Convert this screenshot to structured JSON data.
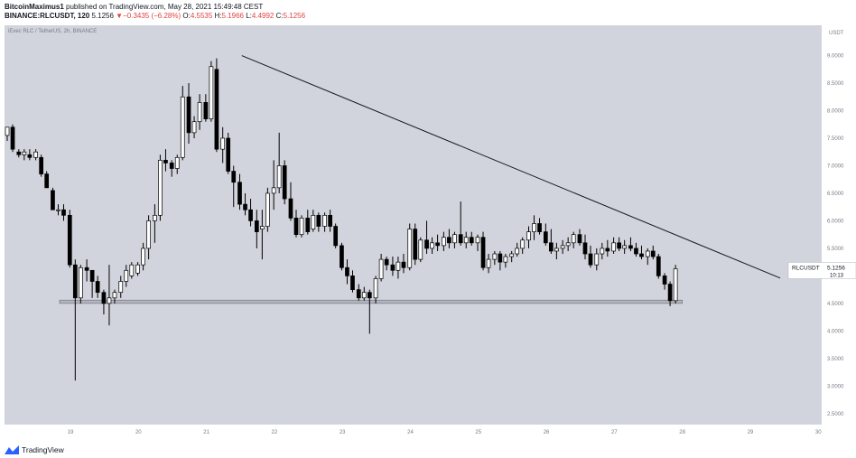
{
  "header": {
    "author": "BitcoinMaximus1",
    "published_text": " published on TradingView.com, May 28, 2021 15:49:48 CEST",
    "symbol": "BINANCE:RLCUSDT, 120",
    "last": "5.1256",
    "change_arrow": "▼",
    "change": "−0.3435 (−6.28%)",
    "o_label": "O:",
    "o_value": "4.5535",
    "h_label": "H:",
    "h_value": "5.1966",
    "l_label": "L:",
    "l_value": "4.4992",
    "c_label": "C:",
    "c_value": "5.1256"
  },
  "watermark": "iExec RLC / TetherUS, 2h, BINANCE",
  "price_tag": {
    "label": "RLCUSDT",
    "value": "5.1256",
    "countdown": "10:13"
  },
  "footer": {
    "brand": "TradingView",
    "logo_icon": "tradingview-logo-icon"
  },
  "colors": {
    "plot_bg": "#d1d4dc",
    "candle_body": "#ffffff",
    "candle_border": "#000000",
    "trendline": "#131722",
    "support_zone": "#b2b5be"
  },
  "chart_data": {
    "type": "candlestick",
    "currency_label": "USDT",
    "y_ticks": [
      "9.0000",
      "8.5000",
      "8.0000",
      "7.5000",
      "7.0000",
      "6.5000",
      "6.0000",
      "5.5000",
      "5.0000",
      "4.5000",
      "4.0000",
      "3.5000",
      "3.0000",
      "2.5000"
    ],
    "ylim": [
      2.3,
      9.55
    ],
    "x_ticks": [
      "19",
      "20",
      "21",
      "22",
      "23",
      "24",
      "25",
      "26",
      "27",
      "28",
      "29",
      "30"
    ],
    "xlim": [
      18.03,
      30.05
    ],
    "annotations": [
      {
        "type": "trendline",
        "from": [
          21.52,
          9.0
        ],
        "to": [
          29.44,
          4.96
        ]
      },
      {
        "type": "support-zone",
        "x_from": 18.84,
        "x_to": 28.0,
        "y_from": 4.5,
        "y_to": 4.56
      }
    ],
    "candles": [
      {
        "x": 18.07,
        "o": 7.55,
        "h": 7.7,
        "l": 7.45,
        "c": 7.7
      },
      {
        "x": 18.15,
        "o": 7.7,
        "h": 7.75,
        "l": 7.25,
        "c": 7.3
      },
      {
        "x": 18.24,
        "o": 7.25,
        "h": 7.3,
        "l": 7.15,
        "c": 7.2
      },
      {
        "x": 18.32,
        "o": 7.2,
        "h": 7.3,
        "l": 7.1,
        "c": 7.25
      },
      {
        "x": 18.4,
        "o": 7.2,
        "h": 7.3,
        "l": 7.1,
        "c": 7.15
      },
      {
        "x": 18.49,
        "o": 7.15,
        "h": 7.3,
        "l": 7.1,
        "c": 7.25
      },
      {
        "x": 18.57,
        "o": 7.15,
        "h": 7.2,
        "l": 6.8,
        "c": 6.85
      },
      {
        "x": 18.65,
        "o": 6.85,
        "h": 6.9,
        "l": 6.6,
        "c": 6.6
      },
      {
        "x": 18.74,
        "o": 6.55,
        "h": 6.6,
        "l": 6.2,
        "c": 6.2
      },
      {
        "x": 18.82,
        "o": 6.2,
        "h": 6.3,
        "l": 6.1,
        "c": 6.2
      },
      {
        "x": 18.9,
        "o": 6.2,
        "h": 6.3,
        "l": 6.0,
        "c": 6.1
      },
      {
        "x": 18.99,
        "o": 6.1,
        "h": 6.2,
        "l": 5.15,
        "c": 5.2
      },
      {
        "x": 19.07,
        "o": 5.2,
        "h": 5.3,
        "l": 3.1,
        "c": 4.6
      },
      {
        "x": 19.15,
        "o": 4.6,
        "h": 5.2,
        "l": 4.5,
        "c": 5.15
      },
      {
        "x": 19.24,
        "o": 5.15,
        "h": 5.3,
        "l": 4.9,
        "c": 5.1
      },
      {
        "x": 19.32,
        "o": 5.1,
        "h": 5.1,
        "l": 4.6,
        "c": 4.9
      },
      {
        "x": 19.4,
        "o": 4.9,
        "h": 5.0,
        "l": 4.6,
        "c": 4.7
      },
      {
        "x": 19.49,
        "o": 4.7,
        "h": 4.75,
        "l": 4.3,
        "c": 4.5
      },
      {
        "x": 19.57,
        "o": 4.5,
        "h": 5.2,
        "l": 4.1,
        "c": 4.6
      },
      {
        "x": 19.65,
        "o": 4.6,
        "h": 4.75,
        "l": 4.5,
        "c": 4.7
      },
      {
        "x": 19.74,
        "o": 4.7,
        "h": 5.0,
        "l": 4.6,
        "c": 4.9
      },
      {
        "x": 19.82,
        "o": 4.9,
        "h": 5.2,
        "l": 4.8,
        "c": 5.1
      },
      {
        "x": 19.9,
        "o": 5.0,
        "h": 5.25,
        "l": 4.95,
        "c": 5.2
      },
      {
        "x": 19.99,
        "o": 5.05,
        "h": 5.25,
        "l": 5.0,
        "c": 5.2
      },
      {
        "x": 20.07,
        "o": 5.2,
        "h": 5.6,
        "l": 5.1,
        "c": 5.5
      },
      {
        "x": 20.15,
        "o": 5.5,
        "h": 6.1,
        "l": 5.3,
        "c": 6.0
      },
      {
        "x": 20.24,
        "o": 6.0,
        "h": 6.3,
        "l": 5.6,
        "c": 6.1
      },
      {
        "x": 20.32,
        "o": 6.1,
        "h": 7.2,
        "l": 6.0,
        "c": 7.1
      },
      {
        "x": 20.4,
        "o": 7.1,
        "h": 7.3,
        "l": 6.9,
        "c": 7.05
      },
      {
        "x": 20.49,
        "o": 7.05,
        "h": 7.1,
        "l": 6.8,
        "c": 6.95
      },
      {
        "x": 20.57,
        "o": 6.95,
        "h": 7.2,
        "l": 6.85,
        "c": 7.15
      },
      {
        "x": 20.65,
        "o": 7.15,
        "h": 8.45,
        "l": 7.1,
        "c": 8.25
      },
      {
        "x": 20.74,
        "o": 8.25,
        "h": 8.5,
        "l": 7.4,
        "c": 7.6
      },
      {
        "x": 20.82,
        "o": 7.6,
        "h": 7.9,
        "l": 7.5,
        "c": 7.8
      },
      {
        "x": 20.9,
        "o": 7.8,
        "h": 8.3,
        "l": 7.65,
        "c": 8.15
      },
      {
        "x": 20.99,
        "o": 8.15,
        "h": 8.3,
        "l": 7.8,
        "c": 7.85
      },
      {
        "x": 21.07,
        "o": 7.85,
        "h": 8.9,
        "l": 7.8,
        "c": 8.8
      },
      {
        "x": 21.15,
        "o": 8.75,
        "h": 8.95,
        "l": 7.25,
        "c": 7.3
      },
      {
        "x": 21.24,
        "o": 7.3,
        "h": 7.7,
        "l": 7.05,
        "c": 7.5
      },
      {
        "x": 21.32,
        "o": 7.5,
        "h": 7.6,
        "l": 6.85,
        "c": 6.9
      },
      {
        "x": 21.4,
        "o": 6.9,
        "h": 7.0,
        "l": 6.25,
        "c": 6.7
      },
      {
        "x": 21.49,
        "o": 6.7,
        "h": 6.85,
        "l": 6.2,
        "c": 6.3
      },
      {
        "x": 21.57,
        "o": 6.3,
        "h": 6.5,
        "l": 6.1,
        "c": 6.2
      },
      {
        "x": 21.65,
        "o": 6.2,
        "h": 6.4,
        "l": 5.9,
        "c": 6.0
      },
      {
        "x": 21.74,
        "o": 6.0,
        "h": 6.2,
        "l": 5.5,
        "c": 5.8
      },
      {
        "x": 21.82,
        "o": 5.85,
        "h": 6.2,
        "l": 5.3,
        "c": 5.9
      },
      {
        "x": 21.9,
        "o": 5.9,
        "h": 6.6,
        "l": 5.8,
        "c": 6.5
      },
      {
        "x": 21.99,
        "o": 6.5,
        "h": 7.1,
        "l": 6.2,
        "c": 6.6
      },
      {
        "x": 22.07,
        "o": 6.6,
        "h": 7.6,
        "l": 6.5,
        "c": 7.0
      },
      {
        "x": 22.15,
        "o": 7.0,
        "h": 7.1,
        "l": 6.3,
        "c": 6.4
      },
      {
        "x": 22.24,
        "o": 6.4,
        "h": 6.7,
        "l": 6.0,
        "c": 6.05
      },
      {
        "x": 22.32,
        "o": 6.05,
        "h": 6.2,
        "l": 5.7,
        "c": 5.75
      },
      {
        "x": 22.4,
        "o": 5.75,
        "h": 6.1,
        "l": 5.7,
        "c": 6.05
      },
      {
        "x": 22.49,
        "o": 6.05,
        "h": 6.2,
        "l": 5.75,
        "c": 5.8
      },
      {
        "x": 22.57,
        "o": 5.85,
        "h": 6.2,
        "l": 5.8,
        "c": 6.1
      },
      {
        "x": 22.65,
        "o": 6.1,
        "h": 6.15,
        "l": 5.8,
        "c": 5.9
      },
      {
        "x": 22.74,
        "o": 5.9,
        "h": 6.15,
        "l": 5.8,
        "c": 6.1
      },
      {
        "x": 22.82,
        "o": 6.1,
        "h": 6.2,
        "l": 5.8,
        "c": 5.9
      },
      {
        "x": 22.9,
        "o": 5.9,
        "h": 5.95,
        "l": 5.5,
        "c": 5.55
      },
      {
        "x": 22.99,
        "o": 5.55,
        "h": 5.6,
        "l": 5.1,
        "c": 5.15
      },
      {
        "x": 23.07,
        "o": 5.15,
        "h": 5.3,
        "l": 4.85,
        "c": 5.0
      },
      {
        "x": 23.15,
        "o": 5.0,
        "h": 5.1,
        "l": 4.7,
        "c": 4.75
      },
      {
        "x": 23.24,
        "o": 4.75,
        "h": 4.85,
        "l": 4.55,
        "c": 4.6
      },
      {
        "x": 23.32,
        "o": 4.6,
        "h": 4.8,
        "l": 4.55,
        "c": 4.7
      },
      {
        "x": 23.4,
        "o": 4.7,
        "h": 4.75,
        "l": 3.95,
        "c": 4.6
      },
      {
        "x": 23.49,
        "o": 4.6,
        "h": 5.0,
        "l": 4.5,
        "c": 4.95
      },
      {
        "x": 23.57,
        "o": 4.95,
        "h": 5.4,
        "l": 4.9,
        "c": 5.3
      },
      {
        "x": 23.65,
        "o": 5.3,
        "h": 5.35,
        "l": 5.1,
        "c": 5.2
      },
      {
        "x": 23.74,
        "o": 5.2,
        "h": 5.35,
        "l": 5.0,
        "c": 5.1
      },
      {
        "x": 23.82,
        "o": 5.1,
        "h": 5.35,
        "l": 4.95,
        "c": 5.25
      },
      {
        "x": 23.9,
        "o": 5.25,
        "h": 5.4,
        "l": 5.05,
        "c": 5.15
      },
      {
        "x": 23.99,
        "o": 5.15,
        "h": 5.95,
        "l": 5.1,
        "c": 5.85
      },
      {
        "x": 24.07,
        "o": 5.85,
        "h": 5.95,
        "l": 5.2,
        "c": 5.3
      },
      {
        "x": 24.15,
        "o": 5.3,
        "h": 5.7,
        "l": 5.25,
        "c": 5.65
      },
      {
        "x": 24.24,
        "o": 5.65,
        "h": 6.0,
        "l": 5.4,
        "c": 5.5
      },
      {
        "x": 24.32,
        "o": 5.5,
        "h": 5.7,
        "l": 5.4,
        "c": 5.6
      },
      {
        "x": 24.4,
        "o": 5.6,
        "h": 5.75,
        "l": 5.45,
        "c": 5.55
      },
      {
        "x": 24.49,
        "o": 5.55,
        "h": 5.8,
        "l": 5.45,
        "c": 5.7
      },
      {
        "x": 24.57,
        "o": 5.7,
        "h": 5.85,
        "l": 5.5,
        "c": 5.6
      },
      {
        "x": 24.65,
        "o": 5.6,
        "h": 5.8,
        "l": 5.5,
        "c": 5.75
      },
      {
        "x": 24.74,
        "o": 5.75,
        "h": 6.35,
        "l": 5.55,
        "c": 5.6
      },
      {
        "x": 24.82,
        "o": 5.6,
        "h": 5.8,
        "l": 5.5,
        "c": 5.7
      },
      {
        "x": 24.9,
        "o": 5.7,
        "h": 5.8,
        "l": 5.55,
        "c": 5.6
      },
      {
        "x": 24.99,
        "o": 5.6,
        "h": 5.75,
        "l": 5.45,
        "c": 5.7
      },
      {
        "x": 25.07,
        "o": 5.7,
        "h": 5.8,
        "l": 5.1,
        "c": 5.15
      },
      {
        "x": 25.15,
        "o": 5.15,
        "h": 5.4,
        "l": 5.05,
        "c": 5.3
      },
      {
        "x": 25.24,
        "o": 5.3,
        "h": 5.45,
        "l": 5.2,
        "c": 5.4
      },
      {
        "x": 25.32,
        "o": 5.4,
        "h": 5.45,
        "l": 5.1,
        "c": 5.25
      },
      {
        "x": 25.4,
        "o": 5.25,
        "h": 5.4,
        "l": 5.15,
        "c": 5.35
      },
      {
        "x": 25.49,
        "o": 5.35,
        "h": 5.45,
        "l": 5.25,
        "c": 5.4
      },
      {
        "x": 25.57,
        "o": 5.4,
        "h": 5.6,
        "l": 5.35,
        "c": 5.5
      },
      {
        "x": 25.65,
        "o": 5.5,
        "h": 5.7,
        "l": 5.4,
        "c": 5.65
      },
      {
        "x": 25.74,
        "o": 5.65,
        "h": 5.9,
        "l": 5.5,
        "c": 5.8
      },
      {
        "x": 25.82,
        "o": 5.8,
        "h": 6.1,
        "l": 5.65,
        "c": 5.95
      },
      {
        "x": 25.9,
        "o": 5.95,
        "h": 6.05,
        "l": 5.75,
        "c": 5.8
      },
      {
        "x": 25.99,
        "o": 5.8,
        "h": 5.95,
        "l": 5.55,
        "c": 5.6
      },
      {
        "x": 26.07,
        "o": 5.6,
        "h": 5.85,
        "l": 5.4,
        "c": 5.45
      },
      {
        "x": 26.15,
        "o": 5.45,
        "h": 5.6,
        "l": 5.3,
        "c": 5.5
      },
      {
        "x": 26.24,
        "o": 5.5,
        "h": 5.65,
        "l": 5.4,
        "c": 5.55
      },
      {
        "x": 26.32,
        "o": 5.55,
        "h": 5.7,
        "l": 5.45,
        "c": 5.6
      },
      {
        "x": 26.4,
        "o": 5.6,
        "h": 5.8,
        "l": 5.5,
        "c": 5.75
      },
      {
        "x": 26.49,
        "o": 5.75,
        "h": 5.85,
        "l": 5.55,
        "c": 5.6
      },
      {
        "x": 26.57,
        "o": 5.6,
        "h": 5.75,
        "l": 5.3,
        "c": 5.4
      },
      {
        "x": 26.65,
        "o": 5.4,
        "h": 5.55,
        "l": 5.15,
        "c": 5.2
      },
      {
        "x": 26.74,
        "o": 5.2,
        "h": 5.5,
        "l": 5.1,
        "c": 5.4
      },
      {
        "x": 26.82,
        "o": 5.4,
        "h": 5.6,
        "l": 5.3,
        "c": 5.5
      },
      {
        "x": 26.9,
        "o": 5.5,
        "h": 5.65,
        "l": 5.35,
        "c": 5.45
      },
      {
        "x": 26.99,
        "o": 5.45,
        "h": 5.7,
        "l": 5.4,
        "c": 5.6
      },
      {
        "x": 27.07,
        "o": 5.6,
        "h": 5.7,
        "l": 5.45,
        "c": 5.5
      },
      {
        "x": 27.15,
        "o": 5.5,
        "h": 5.65,
        "l": 5.4,
        "c": 5.55
      },
      {
        "x": 27.24,
        "o": 5.55,
        "h": 5.7,
        "l": 5.45,
        "c": 5.5
      },
      {
        "x": 27.32,
        "o": 5.5,
        "h": 5.6,
        "l": 5.35,
        "c": 5.4
      },
      {
        "x": 27.4,
        "o": 5.4,
        "h": 5.55,
        "l": 5.3,
        "c": 5.35
      },
      {
        "x": 27.49,
        "o": 5.35,
        "h": 5.5,
        "l": 5.2,
        "c": 5.45
      },
      {
        "x": 27.57,
        "o": 5.45,
        "h": 5.55,
        "l": 5.3,
        "c": 5.35
      },
      {
        "x": 27.65,
        "o": 5.35,
        "h": 5.4,
        "l": 4.95,
        "c": 5.0
      },
      {
        "x": 27.74,
        "o": 5.0,
        "h": 5.05,
        "l": 4.75,
        "c": 4.85
      },
      {
        "x": 27.82,
        "o": 4.85,
        "h": 4.9,
        "l": 4.45,
        "c": 4.55
      },
      {
        "x": 27.9,
        "o": 4.55,
        "h": 5.2,
        "l": 4.5,
        "c": 5.13
      }
    ]
  }
}
